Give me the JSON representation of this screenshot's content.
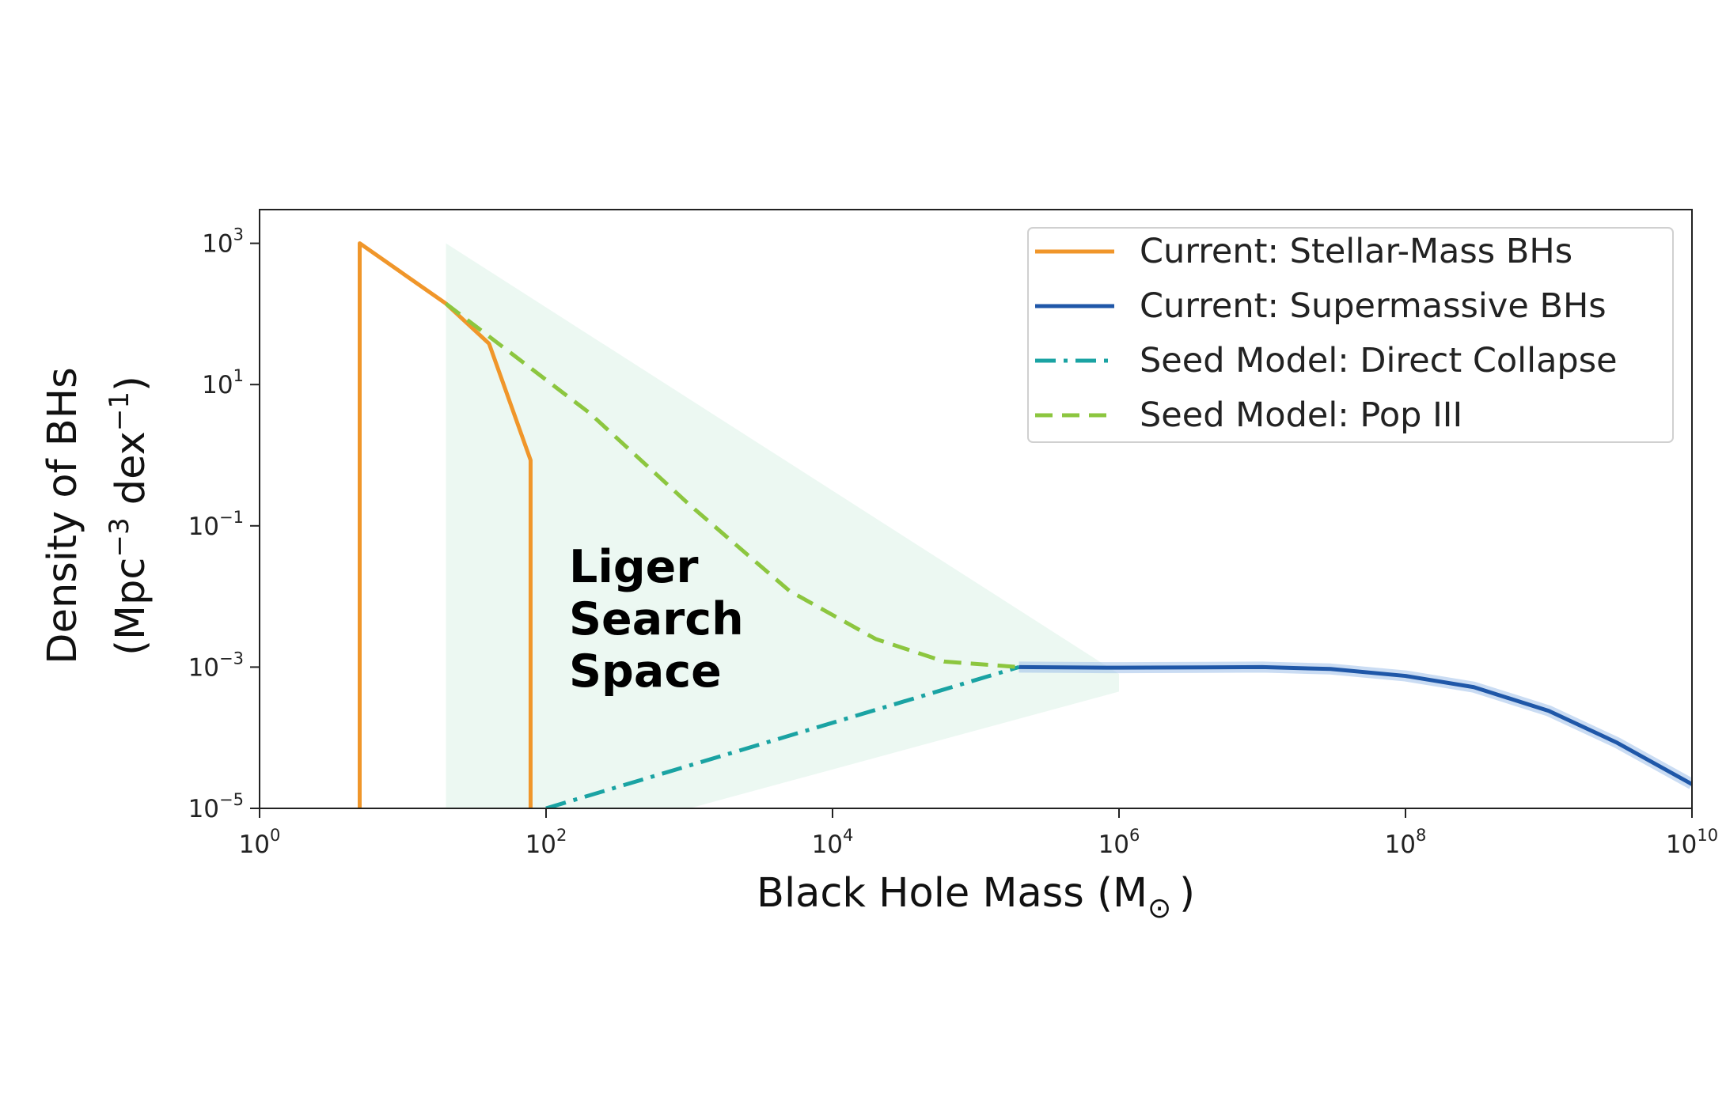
{
  "chart_data": {
    "type": "line",
    "title": "",
    "xlabel": "Black Hole Mass (M",
    "xlabel_symbol": "⊙",
    "xlabel_close": ")",
    "ylabel_line1": "Density of BHs",
    "ylabel_line2_parts": [
      "(Mpc",
      "−3",
      " dex",
      "−1",
      ")"
    ],
    "xscale": "log",
    "yscale": "log",
    "xlim": [
      1,
      10000000000
    ],
    "ylim": [
      1e-05,
      3000
    ],
    "x_ticks": [
      {
        "base": "10",
        "exp": "0",
        "value": 1
      },
      {
        "base": "10",
        "exp": "2",
        "value": 100
      },
      {
        "base": "10",
        "exp": "4",
        "value": 10000
      },
      {
        "base": "10",
        "exp": "6",
        "value": 1000000
      },
      {
        "base": "10",
        "exp": "8",
        "value": 100000000
      },
      {
        "base": "10",
        "exp": "10",
        "value": 10000000000
      }
    ],
    "y_ticks": [
      {
        "base": "10",
        "exp": "3",
        "value": 1000
      },
      {
        "base": "10",
        "exp": "1",
        "value": 10
      },
      {
        "base": "10",
        "exp": "−1",
        "value": 0.1
      },
      {
        "base": "10",
        "exp": "−3",
        "value": 0.001
      },
      {
        "base": "10",
        "exp": "−5",
        "value": 1e-05
      }
    ],
    "grid": false,
    "legend_position": "top-right",
    "shaded_region": {
      "color": "#e6f5ee",
      "points": [
        [
          20,
          1000
        ],
        [
          1000000,
          0.0008
        ],
        [
          1000000,
          0.00045
        ],
        [
          1000,
          1e-05
        ],
        [
          20,
          1e-05
        ]
      ]
    },
    "series": [
      {
        "name": "Current: Stellar-Mass BHs",
        "color": "#f0962a",
        "style": "solid",
        "points": [
          [
            5,
            1e-05
          ],
          [
            5,
            1000
          ],
          [
            20,
            140
          ],
          [
            40,
            38
          ],
          [
            78,
            0.85
          ],
          [
            78,
            1e-05
          ]
        ]
      },
      {
        "name": "Current: Supermassive BHs",
        "color": "#1f57a8",
        "style": "solid",
        "points": [
          [
            200000,
            0.001
          ],
          [
            1000000,
            0.00098
          ],
          [
            10000000,
            0.001
          ],
          [
            30000000,
            0.00094
          ],
          [
            100000000,
            0.00075
          ],
          [
            300000000,
            0.00052
          ],
          [
            1000000000,
            0.00024
          ],
          [
            3000000000,
            8.5e-05
          ],
          [
            10000000000,
            2.2e-05
          ]
        ]
      },
      {
        "name": "Seed Model: Direct Collapse",
        "color": "#1aa3a3",
        "style": "dashdot",
        "points": [
          [
            100,
            1e-05
          ],
          [
            200000,
            0.001
          ]
        ]
      },
      {
        "name": "Seed Model: Pop III",
        "color": "#8cc63f",
        "style": "dashed",
        "points": [
          [
            20,
            140
          ],
          [
            200,
            4
          ],
          [
            1000,
            0.2
          ],
          [
            5000,
            0.012
          ],
          [
            20000,
            0.0025
          ],
          [
            60000,
            0.0012
          ],
          [
            200000,
            0.001
          ]
        ]
      }
    ],
    "annotations": [
      {
        "lines": [
          "Liger",
          "Search",
          "Space"
        ]
      }
    ]
  }
}
